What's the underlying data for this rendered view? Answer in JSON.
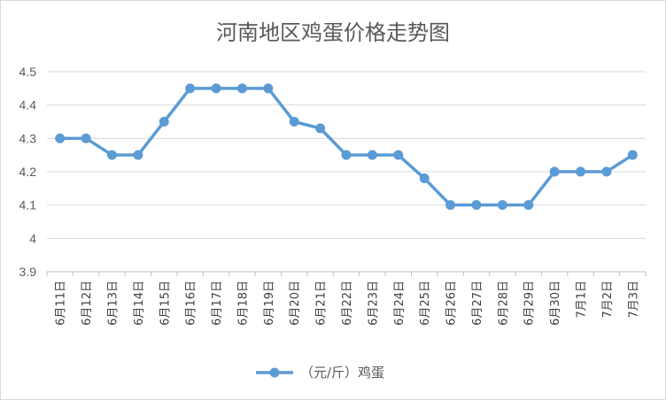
{
  "chart_data": {
    "type": "line",
    "title": "河南地区鸡蛋价格走势图",
    "xlabel": "",
    "ylabel": "",
    "ylim": [
      3.9,
      4.5
    ],
    "y_ticks": [
      "3.9",
      "4",
      "4.1",
      "4.2",
      "4.3",
      "4.4",
      "4.5"
    ],
    "grid": true,
    "legend_position": "bottom",
    "categories": [
      "6月11日",
      "6月12日",
      "6月13日",
      "6月14日",
      "6月15日",
      "6月16日",
      "6月17日",
      "6月18日",
      "6月19日",
      "6月20日",
      "6月21日",
      "6月22日",
      "6月23日",
      "6月24日",
      "6月25日",
      "6月26日",
      "6月27日",
      "6月28日",
      "6月29日",
      "6月30日",
      "7月1日",
      "7月2日",
      "7月3日"
    ],
    "series": [
      {
        "name": "（元/斤）鸡蛋",
        "color": "#5b9bd5",
        "values": [
          4.3,
          4.3,
          4.25,
          4.25,
          4.35,
          4.45,
          4.45,
          4.45,
          4.45,
          4.35,
          4.33,
          4.25,
          4.25,
          4.25,
          4.18,
          4.1,
          4.1,
          4.1,
          4.1,
          4.2,
          4.2,
          4.2,
          4.25
        ]
      }
    ]
  }
}
